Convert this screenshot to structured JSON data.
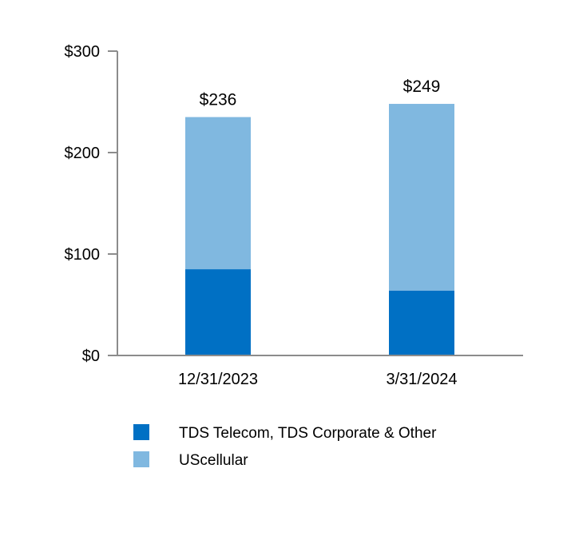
{
  "chart_data": {
    "type": "bar",
    "stacked": true,
    "title": "",
    "xlabel": "",
    "ylabel": "",
    "ylim": [
      0,
      300
    ],
    "y_ticks": [
      0,
      100,
      200,
      300
    ],
    "y_tick_labels": [
      "$0",
      "$100",
      "$200",
      "$300"
    ],
    "categories": [
      "12/31/2023",
      "3/31/2024"
    ],
    "series": [
      {
        "name": "TDS Telecom, TDS Corporate & Other",
        "values": [
          85,
          64
        ],
        "color": "#0070c4"
      },
      {
        "name": "UScellular",
        "values": [
          150,
          184
        ],
        "color": "#80b8e0"
      }
    ],
    "totals": [
      236,
      249
    ],
    "total_labels": [
      "$236",
      "$249"
    ],
    "grid": false,
    "legend_position": "bottom-left"
  }
}
